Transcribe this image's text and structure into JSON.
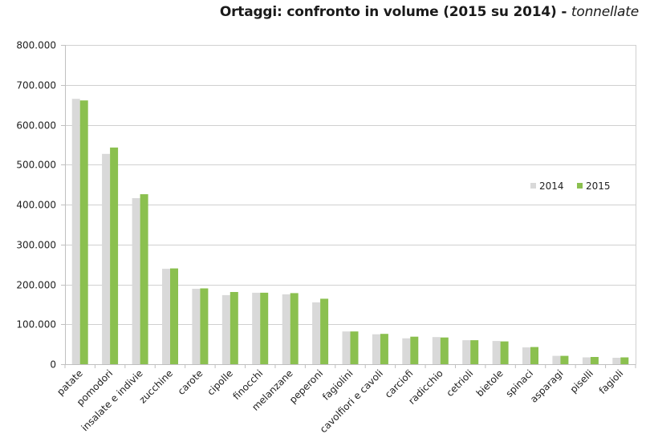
{
  "chart_data": {
    "type": "bar",
    "title": "Ortaggi: confronto in volume (2015 su 2014)",
    "title_separator": " - ",
    "title_unit": "tonnellate",
    "xlabel": "",
    "ylabel": "",
    "ylim": [
      0,
      800000
    ],
    "yticks": [
      0,
      100000,
      200000,
      300000,
      400000,
      500000,
      600000,
      700000,
      800000
    ],
    "ytick_labels": [
      "0",
      "100.000",
      "200.000",
      "300.000",
      "400.000",
      "500.000",
      "600.000",
      "700.000",
      "800.000"
    ],
    "grid": true,
    "legend_position": "right",
    "categories": [
      "patate",
      "pomodori",
      "insalate e indivie",
      "zucchine",
      "carote",
      "cipolle",
      "finocchi",
      "melanzane",
      "peperoni",
      "fagiolini",
      "cavolfiori e cavoli",
      "carciofi",
      "radicchio",
      "cetrioli",
      "bietole",
      "spinaci",
      "asparagi",
      "piselli",
      "fagioli"
    ],
    "series": [
      {
        "name": "2014",
        "color": "#d9d9d9",
        "values": [
          665000,
          527000,
          416000,
          239000,
          189000,
          173000,
          179000,
          175000,
          155000,
          82000,
          75000,
          65000,
          68000,
          60000,
          58000,
          42000,
          21000,
          17000,
          16000
        ]
      },
      {
        "name": "2015",
        "color": "#8bc04f",
        "values": [
          661000,
          543000,
          426000,
          240000,
          190000,
          181000,
          179000,
          178000,
          164000,
          82000,
          76000,
          69000,
          67000,
          60000,
          57000,
          43000,
          21000,
          18000,
          17000
        ]
      }
    ]
  }
}
